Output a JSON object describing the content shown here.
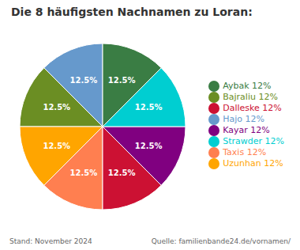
{
  "chart_data": {
    "type": "pie",
    "title": "Die 8 häufigsten Nachnamen zu Loran:",
    "categories": [
      "Hajo 12%",
      "Bajraliu 12%",
      "Uzunhan 12%",
      "Taxis 12%",
      "Dalleske 12%",
      "Kayar 12%",
      "Strawder 12%",
      "Aybak 12%"
    ],
    "values": [
      12.5,
      12.5,
      12.5,
      12.5,
      12.5,
      12.5,
      12.5,
      12.5
    ],
    "value_labels": [
      "12.5%",
      "12.5%",
      "12.5%",
      "12.5%",
      "12.5%",
      "12.5%",
      "12.5%",
      "12.5%"
    ],
    "colors": [
      "#6699CC",
      "#6B8E23",
      "#FFA500",
      "#FF7F50",
      "#CC1133",
      "#800080",
      "#00CED1",
      "#3A7D44"
    ],
    "data_labels": true,
    "legend": "right",
    "annotations": [
      "Stand: November 2024",
      "Quelle: familienbande24.de/vornamen/"
    ]
  }
}
